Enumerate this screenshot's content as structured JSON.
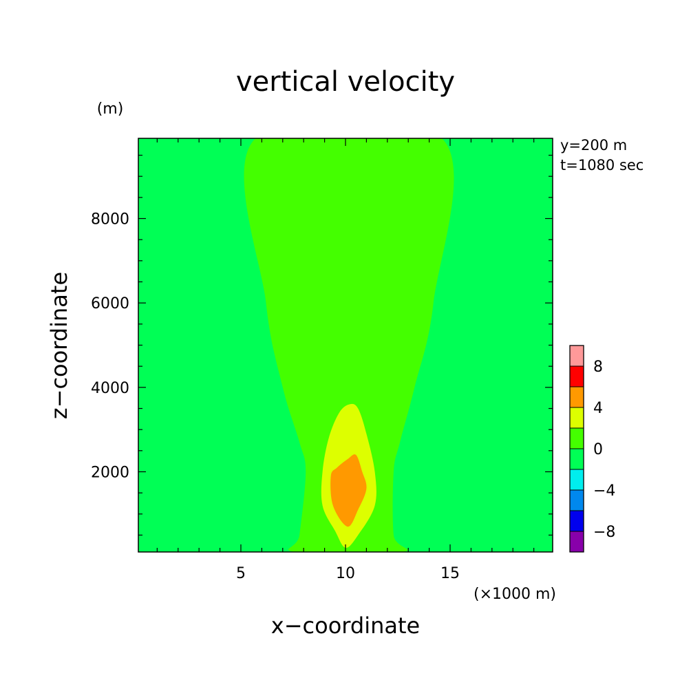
{
  "chart_data": {
    "type": "contour",
    "title": "vertical velocity",
    "xlabel": "x−coordinate",
    "ylabel": "z−coordinate",
    "x_unit": "(×1000 m)",
    "y_unit": "(m)",
    "info_lines": [
      "y=200 m",
      "t=1080 sec"
    ],
    "xlim": [
      0.1,
      19.9
    ],
    "ylim": [
      100,
      9900
    ],
    "xticks": [
      5,
      10,
      15
    ],
    "xtick_labels": [
      "5",
      "10",
      "15"
    ],
    "yticks": [
      2000,
      4000,
      6000,
      8000
    ],
    "ytick_labels": [
      "2000",
      "4000",
      "6000",
      "8000"
    ],
    "grid": false,
    "colorbar": {
      "levels": [
        -10,
        -8,
        -6,
        -4,
        -2,
        0,
        2,
        4,
        6,
        8,
        10
      ],
      "colors": [
        "#8800aa",
        "#0000ee",
        "#0088ee",
        "#00eeee",
        "#00ff55",
        "#44ff00",
        "#ddff00",
        "#ff9900",
        "#ff0000",
        "#ff9999"
      ],
      "tick_values": [
        -8,
        -4,
        0,
        4,
        8
      ],
      "tick_labels": [
        "−8",
        "−4",
        "0",
        "4",
        "8"
      ]
    },
    "regions": [
      {
        "level_min": 0,
        "level_max": 2,
        "color": "#44ff00",
        "boundary": [
          [
            5.7,
            9900
          ],
          [
            6.2,
            6000
          ],
          [
            7.0,
            4000
          ],
          [
            7.8,
            2700
          ],
          [
            8.1,
            2000
          ],
          [
            7.8,
            500
          ],
          [
            7.6,
            100
          ],
          [
            12.7,
            100
          ],
          [
            12.3,
            500
          ],
          [
            12.3,
            2000
          ],
          [
            12.6,
            2700
          ],
          [
            13.3,
            4000
          ],
          [
            14.2,
            6000
          ],
          [
            14.6,
            9900
          ]
        ]
      },
      {
        "level_min": 2,
        "level_max": 4,
        "color": "#ddff00",
        "boundary": [
          [
            9.2,
            2800
          ],
          [
            8.9,
            2000
          ],
          [
            8.9,
            1200
          ],
          [
            9.5,
            600
          ],
          [
            10.0,
            200
          ],
          [
            10.6,
            500
          ],
          [
            11.4,
            1200
          ],
          [
            11.4,
            2000
          ],
          [
            11.0,
            2900
          ],
          [
            10.6,
            3500
          ],
          [
            10.2,
            3600
          ],
          [
            9.7,
            3400
          ]
        ]
      },
      {
        "level_min": 4,
        "level_max": 6,
        "color": "#ff9900",
        "boundary": [
          [
            9.3,
            1900
          ],
          [
            9.4,
            1200
          ],
          [
            10.1,
            700
          ],
          [
            10.6,
            1100
          ],
          [
            11.0,
            1600
          ],
          [
            10.8,
            2000
          ],
          [
            10.5,
            2400
          ],
          [
            10.1,
            2300
          ],
          [
            9.6,
            2100
          ]
        ]
      }
    ],
    "background_level_min": -2,
    "background_level_max": 0,
    "background_color": "#00ff55"
  }
}
